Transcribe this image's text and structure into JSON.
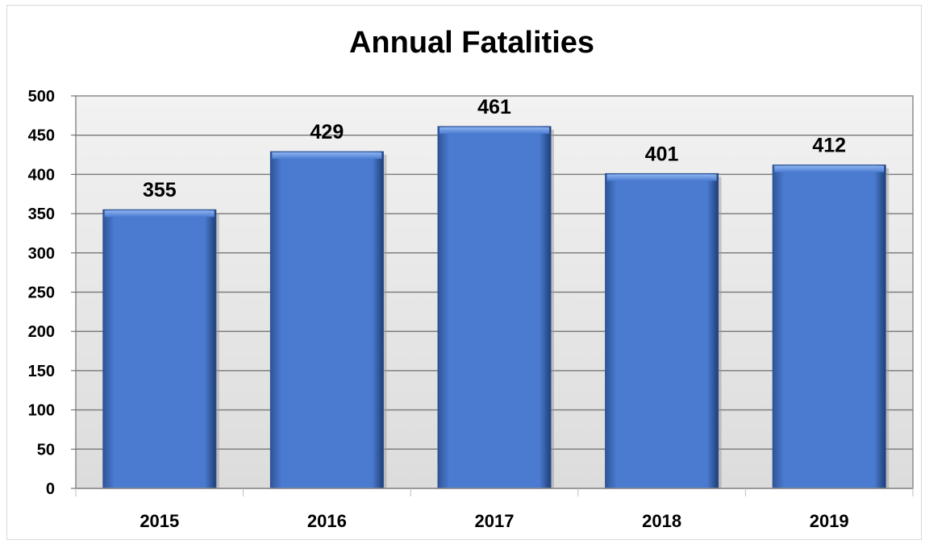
{
  "chart_data": {
    "type": "bar",
    "title": "Annual Fatalities",
    "categories": [
      "2015",
      "2016",
      "2017",
      "2018",
      "2019"
    ],
    "values": [
      355,
      429,
      461,
      401,
      412
    ],
    "data_labels": [
      "355",
      "429",
      "461",
      "401",
      "412"
    ],
    "yticks": [
      "0",
      "50",
      "100",
      "150",
      "200",
      "250",
      "300",
      "350",
      "400",
      "450",
      "500"
    ],
    "ylim": [
      0,
      500
    ],
    "xlabel": "",
    "ylabel": "",
    "grid": true,
    "legend": "none",
    "colors": {
      "bar": "#4a7bd0",
      "bar_top": "#6f9ae6",
      "bar_edge": "#2b4f8f",
      "plot_bg": "#e6e6e6",
      "grid": "#7f7f7f"
    }
  }
}
